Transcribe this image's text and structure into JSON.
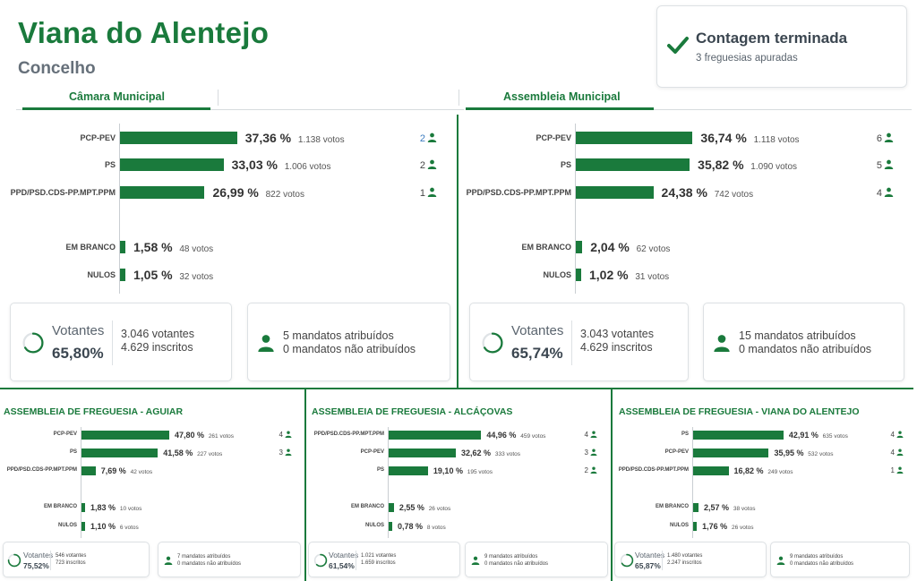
{
  "header": {
    "title": "Viana do Alentejo",
    "subtitle": "Concelho"
  },
  "status": {
    "title": "Contagem terminada",
    "subtitle": "3 freguesias apuradas"
  },
  "tabs": {
    "camara": "Câmara Municipal",
    "assembleia": "Assembleia Municipal"
  },
  "camara": {
    "parties": [
      {
        "name": "PCP-PEV",
        "pct": "37,36 %",
        "votes": "1.138 votos",
        "seats": "2",
        "value": 37.36
      },
      {
        "name": "PS",
        "pct": "33,03 %",
        "votes": "1.006 votos",
        "seats": "2",
        "value": 33.03
      },
      {
        "name": "PPD/PSD.CDS-PP.MPT.PPM",
        "pct": "26,99 %",
        "votes": "822 votos",
        "seats": "1",
        "value": 26.99
      }
    ],
    "others": [
      {
        "name": "EM BRANCO",
        "pct": "1,58 %",
        "votes": "48 votos",
        "value": 1.58
      },
      {
        "name": "NULOS",
        "pct": "1,05 %",
        "votes": "32 votos",
        "value": 1.05
      }
    ],
    "turnout": {
      "label": "Votantes",
      "pct": "65,80%",
      "votantes": "3.046 votantes",
      "inscritos": "4.629 inscritos",
      "fraction": 0.658
    },
    "mandates": {
      "assigned": "5 mandatos atribuídos",
      "unassigned": "0 mandatos não atribuídos"
    }
  },
  "assembleia": {
    "parties": [
      {
        "name": "PCP-PEV",
        "pct": "36,74 %",
        "votes": "1.118 votos",
        "seats": "6",
        "value": 36.74
      },
      {
        "name": "PS",
        "pct": "35,82 %",
        "votes": "1.090 votos",
        "seats": "5",
        "value": 35.82
      },
      {
        "name": "PPD/PSD.CDS-PP.MPT.PPM",
        "pct": "24,38 %",
        "votes": "742 votos",
        "seats": "4",
        "value": 24.38
      }
    ],
    "others": [
      {
        "name": "EM BRANCO",
        "pct": "2,04 %",
        "votes": "62 votos",
        "value": 2.04
      },
      {
        "name": "NULOS",
        "pct": "1,02 %",
        "votes": "31 votos",
        "value": 1.02
      }
    ],
    "turnout": {
      "label": "Votantes",
      "pct": "65,74%",
      "votantes": "3.043 votantes",
      "inscritos": "4.629 inscritos",
      "fraction": 0.6574
    },
    "mandates": {
      "assigned": "15 mandatos atribuídos",
      "unassigned": "0 mandatos não atribuídos"
    }
  },
  "freguesias": [
    {
      "title": "ASSEMBLEIA DE FREGUESIA - AGUIAR",
      "parties": [
        {
          "name": "PCP-PEV",
          "pct": "47,80 %",
          "votes": "261 votos",
          "seats": "4",
          "value": 47.8
        },
        {
          "name": "PS",
          "pct": "41,58 %",
          "votes": "227 votos",
          "seats": "3",
          "value": 41.58
        },
        {
          "name": "PPD/PSD.CDS-PP.MPT.PPM",
          "pct": "7,69 %",
          "votes": "42 votos",
          "seats": "",
          "value": 7.69
        }
      ],
      "others": [
        {
          "name": "EM BRANCO",
          "pct": "1,83 %",
          "votes": "10 votos",
          "value": 1.83
        },
        {
          "name": "NULOS",
          "pct": "1,10 %",
          "votes": "6 votos",
          "value": 1.1
        }
      ],
      "turnout": {
        "label": "Votantes",
        "pct": "75,52%",
        "votantes": "546 votantes",
        "inscritos": "723 inscritos",
        "fraction": 0.7552
      },
      "mandates": {
        "assigned": "7 mandatos atribuídos",
        "unassigned": "0 mandatos não atribuídos"
      }
    },
    {
      "title": "ASSEMBLEIA DE FREGUESIA - ALCÁÇOVAS",
      "parties": [
        {
          "name": "PPD/PSD.CDS-PP.MPT.PPM",
          "pct": "44,96 %",
          "votes": "459 votos",
          "seats": "4",
          "value": 44.96
        },
        {
          "name": "PCP-PEV",
          "pct": "32,62 %",
          "votes": "333 votos",
          "seats": "3",
          "value": 32.62
        },
        {
          "name": "PS",
          "pct": "19,10 %",
          "votes": "195 votos",
          "seats": "2",
          "value": 19.1
        }
      ],
      "others": [
        {
          "name": "EM BRANCO",
          "pct": "2,55 %",
          "votes": "26 votos",
          "value": 2.55
        },
        {
          "name": "NULOS",
          "pct": "0,78 %",
          "votes": "8 votos",
          "value": 0.78
        }
      ],
      "turnout": {
        "label": "Votantes",
        "pct": "61,54%",
        "votantes": "1.021 votantes",
        "inscritos": "1.659 inscritos",
        "fraction": 0.6154
      },
      "mandates": {
        "assigned": "9 mandatos atribuídos",
        "unassigned": "0 mandatos não atribuídos"
      }
    },
    {
      "title": "ASSEMBLEIA DE FREGUESIA - VIANA DO ALENTEJO",
      "parties": [
        {
          "name": "PS",
          "pct": "42,91 %",
          "votes": "635 votos",
          "seats": "4",
          "value": 42.91
        },
        {
          "name": "PCP-PEV",
          "pct": "35,95 %",
          "votes": "532 votos",
          "seats": "4",
          "value": 35.95
        },
        {
          "name": "PPD/PSD.CDS-PP.MPT.PPM",
          "pct": "16,82 %",
          "votes": "249 votos",
          "seats": "1",
          "value": 16.82
        }
      ],
      "others": [
        {
          "name": "EM BRANCO",
          "pct": "2,57 %",
          "votes": "38 votos",
          "value": 2.57
        },
        {
          "name": "NULOS",
          "pct": "1,76 %",
          "votes": "26 votos",
          "value": 1.76
        }
      ],
      "turnout": {
        "label": "Votantes",
        "pct": "65,87%",
        "votantes": "1.480 votantes",
        "inscritos": "2.247 inscritos",
        "fraction": 0.6587
      },
      "mandates": {
        "assigned": "9 mandatos atribuídos",
        "unassigned": "0 mandatos não atribuídos"
      }
    }
  ],
  "colors": {
    "accent": "#1a7a3c",
    "link_seat": "#3b7bbf"
  },
  "icons": {
    "status": "checkmark-icon",
    "seat": "person-icon",
    "turnout": "progress-ring-icon"
  }
}
